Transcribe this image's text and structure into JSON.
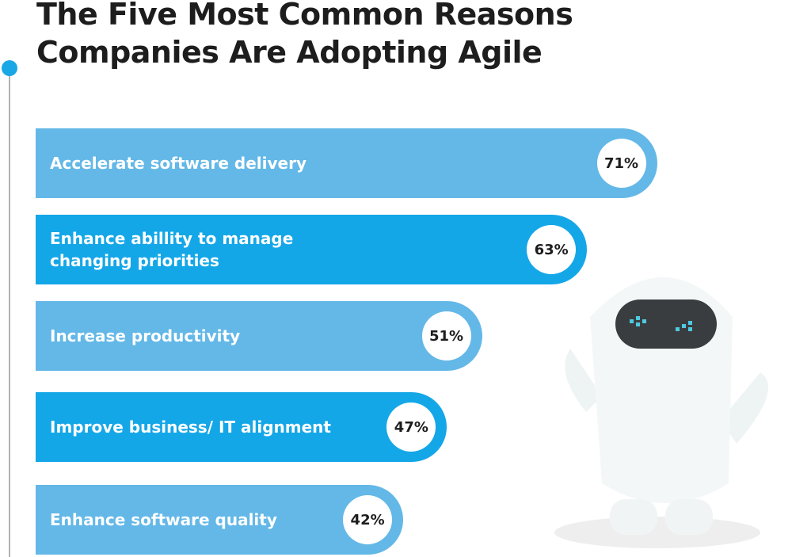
{
  "chart_data": {
    "type": "bar",
    "orientation": "horizontal",
    "title": "The Five Most Common Reasons Companies Are Adopting Agile",
    "categories": [
      "Accelerate software delivery",
      "Enhance abillity to manage changing priorities",
      "Increase productivity",
      "Improve business/ IT alignment",
      "Enhance software quality"
    ],
    "values": [
      71,
      63,
      51,
      47,
      42
    ],
    "value_labels": [
      "71%",
      "63%",
      "51%",
      "47%",
      "42%"
    ],
    "colors": [
      "#63b8e7",
      "#14a7e8",
      "#63b8e7",
      "#14a7e8",
      "#63b8e7"
    ]
  }
}
